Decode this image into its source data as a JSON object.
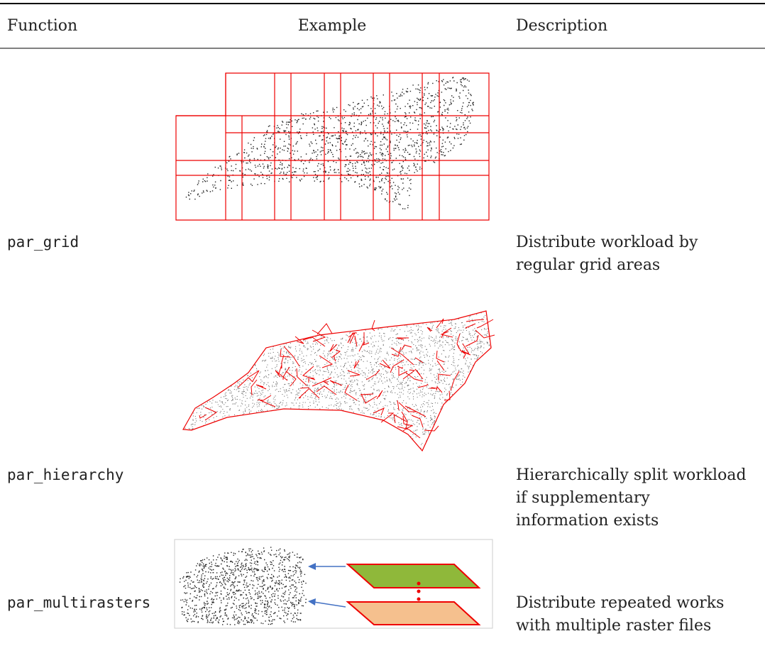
{
  "table": {
    "columns": [
      "Function",
      "Example",
      "Description"
    ],
    "rows": [
      {
        "function": "par_grid",
        "description": [
          "Distribute workload by",
          "regular grid areas"
        ]
      },
      {
        "function": "par_hierarchy",
        "description": [
          "Hierarchically split workload",
          "if supplementary",
          "information exists"
        ]
      },
      {
        "function": "par_multirasters",
        "description": [
          "Distribute repeated works",
          "with multiple raster files"
        ]
      }
    ]
  }
}
